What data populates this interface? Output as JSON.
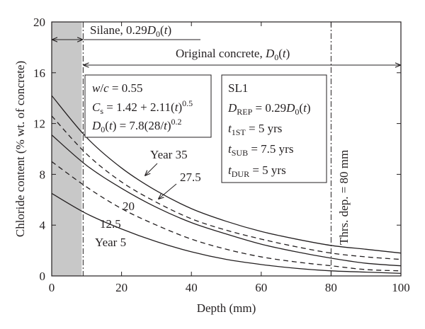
{
  "chart_data": {
    "type": "line",
    "xlabel": "Depth (mm)",
    "ylabel": "Chloride content (% wt. of concrete)",
    "xlim": [
      0,
      100
    ],
    "ylim": [
      0,
      20
    ],
    "x_ticks": [
      0,
      20,
      40,
      60,
      80,
      100
    ],
    "y_ticks": [
      0,
      4,
      8,
      12,
      16,
      20
    ],
    "grid": false,
    "series": [
      {
        "name": "Year 35",
        "style": "solid",
        "x": [
          0,
          10,
          20,
          30,
          40,
          50,
          60,
          70,
          80,
          90,
          100
        ],
        "y": [
          14.2,
          10.9,
          8.5,
          6.7,
          5.3,
          4.3,
          3.5,
          2.9,
          2.4,
          2.1,
          1.8
        ]
      },
      {
        "name": "27.5",
        "style": "dashed",
        "x": [
          0,
          10,
          20,
          30,
          40,
          50,
          60,
          70,
          80,
          90,
          100
        ],
        "y": [
          12.6,
          9.6,
          7.4,
          5.8,
          4.5,
          3.6,
          2.9,
          2.3,
          1.8,
          1.5,
          1.3
        ]
      },
      {
        "name": "20",
        "style": "solid",
        "x": [
          0,
          10,
          20,
          30,
          40,
          50,
          60,
          70,
          80,
          90,
          100
        ],
        "y": [
          11.1,
          8.7,
          6.9,
          5.4,
          4.2,
          3.3,
          2.5,
          1.9,
          1.4,
          1.0,
          0.8
        ]
      },
      {
        "name": "12.5",
        "style": "dashed",
        "x": [
          0,
          10,
          20,
          30,
          40,
          50,
          60,
          70,
          80,
          90,
          100
        ],
        "y": [
          9.0,
          7.0,
          5.3,
          4.0,
          2.9,
          2.1,
          1.5,
          1.1,
          0.8,
          0.5,
          0.4
        ]
      },
      {
        "name": "Year 5",
        "style": "solid",
        "x": [
          0,
          10,
          20,
          30,
          40,
          50,
          60,
          70,
          80,
          90,
          100
        ],
        "y": [
          6.5,
          4.9,
          3.7,
          2.7,
          1.9,
          1.3,
          0.9,
          0.6,
          0.4,
          0.3,
          0.2
        ]
      }
    ],
    "annotations": {
      "silane_label": "Silane, 0.29D0(t)",
      "original_label": "Original concrete, D0(t)",
      "threshold_label": "Thrs. dep. = 80 mm",
      "box1": [
        "w/c = 0.55",
        "Cs = 1.42 + 2.11(t)^0.5",
        "D0(t) = 7.8(28/t)^0.2"
      ],
      "box2": [
        "SL1",
        "DREP = 0.29D0(t)",
        "t1ST = 5 yrs",
        "tSUB = 7.5 yrs",
        "tDUR = 5 yrs"
      ]
    },
    "silane_zone_x": [
      0,
      9
    ],
    "threshold_x": 80,
    "colors": {
      "ink": "#231f20",
      "shade": "#c8c8c8"
    }
  }
}
